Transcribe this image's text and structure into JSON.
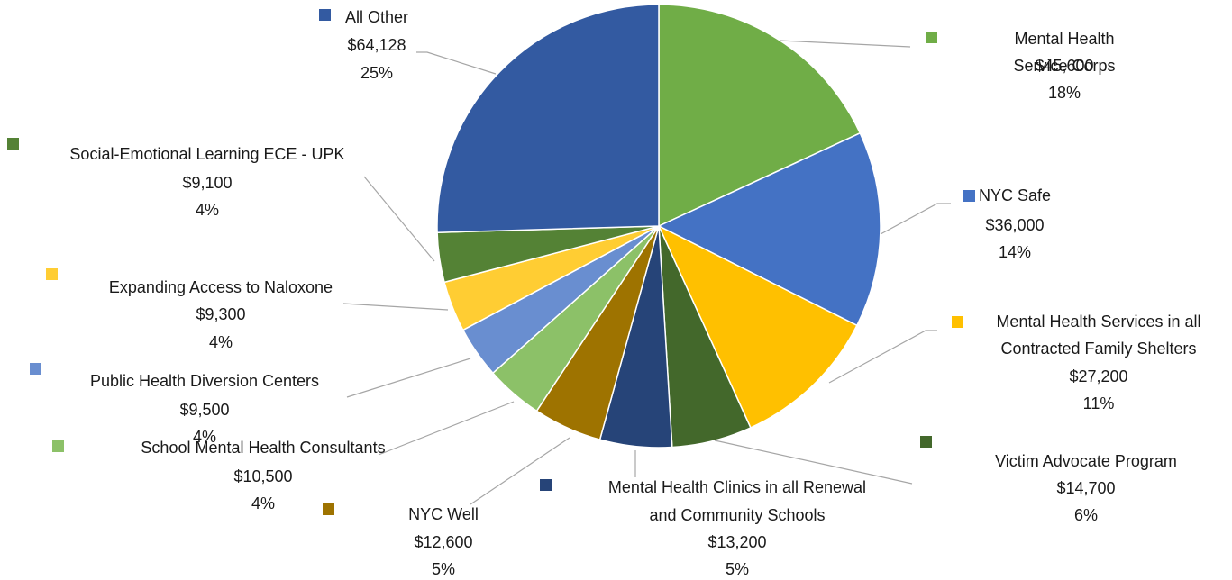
{
  "chart_data": {
    "type": "pie",
    "title": "",
    "slices": [
      {
        "label": "Mental Health Service Corps",
        "value_label": "$45,600",
        "value": 45600,
        "percent_label": "18%",
        "color": "#70ad47"
      },
      {
        "label": "NYC Safe",
        "value_label": "$36,000",
        "value": 36000,
        "percent_label": "14%",
        "color": "#4472c4"
      },
      {
        "label": "Mental Health Services in all Contracted Family Shelters",
        "value_label": "$27,200",
        "value": 27200,
        "percent_label": "11%",
        "color": "#ffc000"
      },
      {
        "label": "Victim Advocate Program",
        "value_label": "$14,700",
        "value": 14700,
        "percent_label": "6%",
        "color": "#43682b"
      },
      {
        "label": "Mental Health Clinics in all Renewal and Community Schools",
        "value_label": "$13,200",
        "value": 13200,
        "percent_label": "5%",
        "color": "#264478"
      },
      {
        "label": "NYC Well",
        "value_label": "$12,600",
        "value": 12600,
        "percent_label": "5%",
        "color": "#9e7300"
      },
      {
        "label": "School Mental Health Consultants",
        "value_label": "$10,500",
        "value": 10500,
        "percent_label": "4%",
        "color": "#8cc168"
      },
      {
        "label": "Public Health Diversion Centers",
        "value_label": "$9,500",
        "value": 9500,
        "percent_label": "4%",
        "color": "#698ed0"
      },
      {
        "label": "Expanding Access to Naloxone",
        "value_label": "$9,300",
        "value": 9300,
        "percent_label": "4%",
        "color": "#ffcd33"
      },
      {
        "label": "Social-Emotional Learning ECE - UPK",
        "value_label": "$9,100",
        "value": 9100,
        "percent_label": "4%",
        "color": "#548235"
      },
      {
        "label": "All Other",
        "value_label": "$64,128",
        "value": 64128,
        "percent_label": "25%",
        "color": "#335aa1"
      }
    ]
  }
}
